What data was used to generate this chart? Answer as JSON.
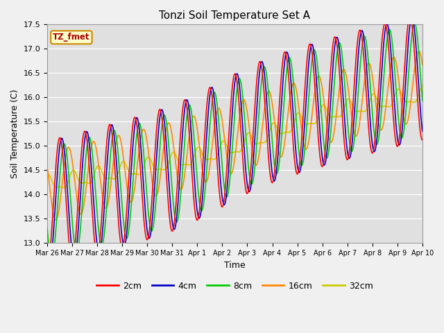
{
  "title": "Tonzi Soil Temperature Set A",
  "xlabel": "Time",
  "ylabel": "Soil Temperature (C)",
  "ylim": [
    13.0,
    17.5
  ],
  "annotation": "TZ_fmet",
  "fig_facecolor": "#f0f0f0",
  "ax_facecolor": "#e0e0e0",
  "grid_color": "#ffffff",
  "line_colors": {
    "2cm": "#ff0000",
    "4cm": "#0000cc",
    "8cm": "#00cc00",
    "16cm": "#ff8800",
    "32cm": "#cccc00"
  },
  "x_tick_labels": [
    "Mar 26",
    "Mar 27",
    "Mar 28",
    "Mar 29",
    "Mar 30",
    "Mar 31",
    "Apr 1",
    "Apr 2",
    "Apr 3",
    "Apr 4",
    "Apr 5",
    "Apr 6",
    "Apr 7",
    "Apr 8",
    "Apr 9",
    "Apr 10"
  ],
  "num_days": 15,
  "points_per_day": 96
}
